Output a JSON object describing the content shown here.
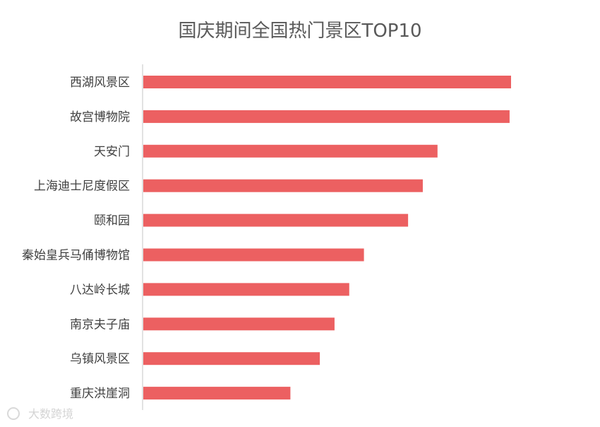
{
  "chart_data": {
    "type": "bar",
    "orientation": "horizontal",
    "title": "国庆期间全国热门景区TOP10",
    "categories": [
      "西湖风景区",
      "故宫博物院",
      "天安门",
      "上海迪士尼度假区",
      "颐和园",
      "秦始皇兵马俑博物馆",
      "八达岭长城",
      "南京夫子庙",
      "乌镇风景区",
      "重庆洪崖洞"
    ],
    "values": [
      100,
      99.6,
      80,
      76,
      72,
      60,
      56,
      52,
      48,
      40
    ],
    "xlim": [
      0,
      100
    ],
    "grid": false,
    "legend": "none",
    "bar_color": "#ec6061",
    "axis_color": "#d9d9d9"
  },
  "watermark": {
    "logo": "iCoo",
    "text": "大数跨境"
  }
}
